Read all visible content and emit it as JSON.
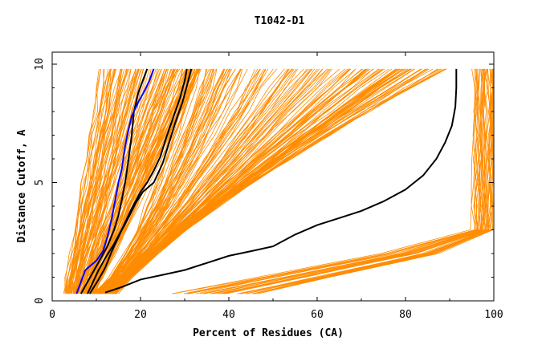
{
  "chart_data": {
    "type": "line",
    "title": "T1042-D1",
    "xlabel": "Percent of Residues (CA)",
    "ylabel": "Distance Cutoff, A",
    "xlim": [
      0,
      100
    ],
    "ylim": [
      0,
      10
    ],
    "x_ticks": [
      0,
      20,
      40,
      60,
      80,
      100
    ],
    "y_ticks": [
      0,
      5,
      10
    ],
    "x_tick_labels": [
      "0",
      "20",
      "40",
      "60",
      "80",
      "100"
    ],
    "y_tick_labels": [
      "0",
      "5",
      "10"
    ],
    "grid": false,
    "legend": "none",
    "colors": {
      "background_models": "#ff8c00",
      "highlight": "#000000",
      "highlight_alt": "#0000ff",
      "axes": "#000000"
    },
    "series": [
      {
        "color": "#000000",
        "points": [
          [
            6.5,
            0.3
          ],
          [
            8,
            0.8
          ],
          [
            9.5,
            1.3
          ],
          [
            11,
            1.8
          ],
          [
            12.5,
            2.3
          ],
          [
            14,
            3
          ],
          [
            15,
            3.6
          ],
          [
            15.8,
            4.3
          ],
          [
            16.5,
            5
          ],
          [
            17,
            5.6
          ],
          [
            17.5,
            6.3
          ],
          [
            18,
            7
          ],
          [
            18.5,
            8
          ],
          [
            19.5,
            8.8
          ],
          [
            20.5,
            9.3
          ],
          [
            21.5,
            9.8
          ]
        ]
      },
      {
        "color": "#0000ff",
        "points": [
          [
            5.5,
            0.3
          ],
          [
            6.5,
            0.8
          ],
          [
            7.5,
            1.3
          ],
          [
            10,
            1.7
          ],
          [
            11.5,
            2.1
          ],
          [
            12.5,
            2.7
          ],
          [
            13.5,
            3.5
          ],
          [
            14.3,
            4.3
          ],
          [
            15,
            5
          ],
          [
            15.8,
            5.6
          ],
          [
            16.3,
            6.3
          ],
          [
            17,
            7
          ],
          [
            18,
            7.8
          ],
          [
            19.5,
            8.4
          ],
          [
            21,
            8.9
          ],
          [
            22,
            9.3
          ],
          [
            23,
            9.8
          ]
        ]
      },
      {
        "color": "#000000",
        "points": [
          [
            8,
            0.3
          ],
          [
            9,
            0.7
          ],
          [
            10.5,
            1.3
          ],
          [
            12,
            1.8
          ],
          [
            14,
            2.4
          ],
          [
            16,
            3.1
          ],
          [
            18,
            3.9
          ],
          [
            20,
            4.6
          ],
          [
            21.5,
            5
          ],
          [
            23,
            5.5
          ],
          [
            24.5,
            6.1
          ],
          [
            26,
            7
          ],
          [
            27.5,
            7.8
          ],
          [
            29,
            8.6
          ],
          [
            30,
            9.3
          ],
          [
            30.5,
            9.8
          ]
        ]
      },
      {
        "color": "#000000",
        "points": [
          [
            8.5,
            0.3
          ],
          [
            10.5,
            0.9
          ],
          [
            12,
            1.4
          ],
          [
            13.5,
            2.1
          ],
          [
            15.5,
            2.9
          ],
          [
            17.5,
            3.6
          ],
          [
            18.8,
            4.1
          ],
          [
            20.5,
            4.6
          ],
          [
            23,
            5
          ],
          [
            25,
            5.8
          ],
          [
            26.5,
            6.7
          ],
          [
            28,
            7.6
          ],
          [
            29.5,
            8.4
          ],
          [
            30.5,
            9.1
          ],
          [
            31.5,
            9.8
          ]
        ]
      },
      {
        "color": "#000000",
        "points": [
          [
            12,
            0.35
          ],
          [
            16,
            0.6
          ],
          [
            20,
            0.9
          ],
          [
            25,
            1.1
          ],
          [
            30,
            1.3
          ],
          [
            35,
            1.6
          ],
          [
            40,
            1.9
          ],
          [
            45,
            2.1
          ],
          [
            50,
            2.3
          ],
          [
            55,
            2.8
          ],
          [
            60,
            3.2
          ],
          [
            65,
            3.5
          ],
          [
            70,
            3.8
          ],
          [
            75,
            4.2
          ],
          [
            80,
            4.7
          ],
          [
            84,
            5.3
          ],
          [
            87,
            6
          ],
          [
            89,
            6.7
          ],
          [
            90.5,
            7.4
          ],
          [
            91.3,
            8.2
          ],
          [
            91.5,
            9
          ],
          [
            91.5,
            9.8
          ]
        ]
      }
    ]
  }
}
